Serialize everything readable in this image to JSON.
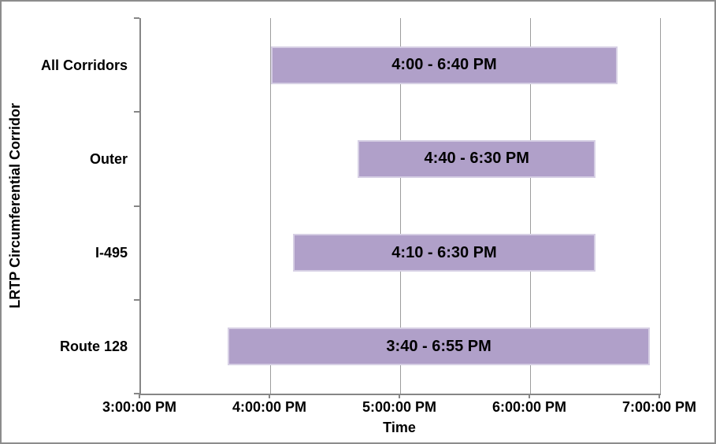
{
  "chart_data": {
    "type": "bar",
    "orientation": "horizontal-range",
    "title": "",
    "xlabel": "Time",
    "ylabel": "LRTP Circumferential Corridor",
    "x_tick_labels": [
      "3:00:00 PM",
      "4:00:00 PM",
      "5:00:00 PM",
      "6:00:00 PM",
      "7:00:00 PM"
    ],
    "xlim_hours_24h": [
      15,
      19
    ],
    "grid": "vertical-major",
    "legend": "none",
    "bar_fill_color": "#b0a0c9",
    "bar_border_color": "#d6cfe4",
    "gridline_color": "#9d9d9d",
    "axis_color": "#868686",
    "categories": [
      "All Corridors",
      "Outer",
      "I-495",
      "Route 128"
    ],
    "bars": [
      {
        "category": "All Corridors",
        "start_hour_24h": 16.0,
        "end_hour_24h": 18.6667,
        "label": "4:00 - 6:40 PM"
      },
      {
        "category": "Outer",
        "start_hour_24h": 16.6667,
        "end_hour_24h": 18.5,
        "label": "4:40 - 6:30 PM"
      },
      {
        "category": "I-495",
        "start_hour_24h": 16.1667,
        "end_hour_24h": 18.5,
        "label": "4:10 - 6:30 PM"
      },
      {
        "category": "Route 128",
        "start_hour_24h": 15.6667,
        "end_hour_24h": 18.9167,
        "label": "3:40 - 6:55 PM"
      }
    ]
  }
}
